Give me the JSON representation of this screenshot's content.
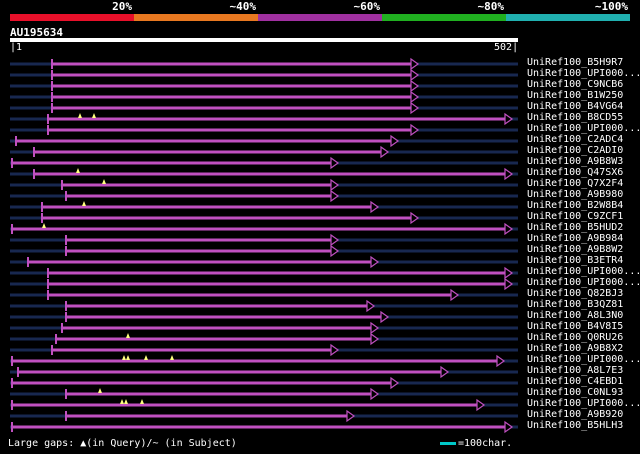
{
  "legend": {
    "labels": [
      "20%",
      "~40%",
      "~60%",
      "~80%",
      "~100%"
    ],
    "colors": [
      "#e8102a",
      "#e87820",
      "#a030a0",
      "#20b020",
      "#20b0b0"
    ]
  },
  "query": {
    "id": "AU195634",
    "start": "1",
    "end": "502"
  },
  "hit_color": "#c050c0",
  "faint_color": "#182850",
  "hits": [
    {
      "label": "UniRef100_B5H9R7",
      "start": 52,
      "end": 418,
      "faint_start": 10,
      "arrow": true,
      "gaps": []
    },
    {
      "label": "UniRef100_UPI000...",
      "start": 52,
      "end": 418,
      "faint_start": 10,
      "arrow": true,
      "gaps": []
    },
    {
      "label": "UniRef100_C9NCB6",
      "start": 52,
      "end": 418,
      "faint_start": 10,
      "arrow": true,
      "gaps": []
    },
    {
      "label": "UniRef100_B1W250",
      "start": 52,
      "end": 418,
      "faint_start": 10,
      "arrow": true,
      "gaps": []
    },
    {
      "label": "UniRef100_B4VG64",
      "start": 52,
      "end": 418,
      "faint_start": 10,
      "arrow": true,
      "gaps": []
    },
    {
      "label": "UniRef100_B8CD55",
      "start": 48,
      "end": 512,
      "faint_start": 10,
      "arrow": true,
      "gaps": [
        80,
        94
      ]
    },
    {
      "label": "UniRef100_UPI000...",
      "start": 48,
      "end": 418,
      "faint_start": 10,
      "arrow": true,
      "gaps": []
    },
    {
      "label": "UniRef100_C2ADC4",
      "start": 16,
      "end": 398,
      "faint_start": 10,
      "arrow": true,
      "gaps": []
    },
    {
      "label": "UniRef100_C2ADI0",
      "start": 34,
      "end": 388,
      "faint_start": 10,
      "arrow": true,
      "gaps": []
    },
    {
      "label": "UniRef100_A9B8W3",
      "start": 12,
      "end": 338,
      "faint_start": 10,
      "arrow": true,
      "gaps": []
    },
    {
      "label": "UniRef100_Q47SX6",
      "start": 34,
      "end": 512,
      "faint_start": 10,
      "arrow": true,
      "gaps": [
        78
      ]
    },
    {
      "label": "UniRef100_Q7X2F4",
      "start": 62,
      "end": 338,
      "faint_start": 10,
      "arrow": true,
      "gaps": [
        104
      ]
    },
    {
      "label": "UniRef100_A9B980",
      "start": 66,
      "end": 338,
      "faint_start": 10,
      "arrow": true,
      "gaps": []
    },
    {
      "label": "UniRef100_B2W8B4",
      "start": 42,
      "end": 378,
      "faint_start": 10,
      "arrow": true,
      "gaps": [
        84
      ]
    },
    {
      "label": "UniRef100_C9ZCF1",
      "start": 42,
      "end": 418,
      "faint_start": 10,
      "arrow": true,
      "gaps": []
    },
    {
      "label": "UniRef100_B5HUD2",
      "start": 12,
      "end": 512,
      "faint_start": 10,
      "arrow": true,
      "gaps": [
        44
      ]
    },
    {
      "label": "UniRef100_A9B984",
      "start": 66,
      "end": 338,
      "faint_start": 10,
      "arrow": true,
      "gaps": []
    },
    {
      "label": "UniRef100_A9B8W2",
      "start": 66,
      "end": 338,
      "faint_start": 10,
      "arrow": true,
      "gaps": []
    },
    {
      "label": "UniRef100_B3ETR4",
      "start": 28,
      "end": 378,
      "faint_start": 10,
      "arrow": true,
      "gaps": []
    },
    {
      "label": "UniRef100_UPI000...",
      "start": 48,
      "end": 512,
      "faint_start": 10,
      "arrow": true,
      "gaps": []
    },
    {
      "label": "UniRef100_UPI000...",
      "start": 48,
      "end": 512,
      "faint_start": 10,
      "arrow": true,
      "gaps": []
    },
    {
      "label": "UniRef100_Q82BJ3",
      "start": 48,
      "end": 458,
      "faint_start": 10,
      "arrow": true,
      "gaps": []
    },
    {
      "label": "UniRef100_B3QZ81",
      "start": 66,
      "end": 374,
      "faint_start": 10,
      "arrow": true,
      "gaps": []
    },
    {
      "label": "UniRef100_A8L3N0",
      "start": 66,
      "end": 388,
      "faint_start": 10,
      "arrow": true,
      "gaps": []
    },
    {
      "label": "UniRef100_B4V8I5",
      "start": 62,
      "end": 378,
      "faint_start": 10,
      "arrow": true,
      "gaps": []
    },
    {
      "label": "UniRef100_Q0RU26",
      "start": 56,
      "end": 378,
      "faint_start": 10,
      "arrow": true,
      "gaps": [
        128
      ]
    },
    {
      "label": "UniRef100_A9B8X2",
      "start": 52,
      "end": 338,
      "faint_start": 10,
      "arrow": true,
      "gaps": []
    },
    {
      "label": "UniRef100_UPI000...",
      "start": 12,
      "end": 504,
      "faint_start": 10,
      "arrow": true,
      "gaps": [
        124,
        128,
        146,
        172
      ]
    },
    {
      "label": "UniRef100_A8L7E3",
      "start": 18,
      "end": 448,
      "faint_start": 10,
      "arrow": true,
      "gaps": []
    },
    {
      "label": "UniRef100_C4EBD1",
      "start": 12,
      "end": 398,
      "faint_start": 10,
      "arrow": true,
      "gaps": []
    },
    {
      "label": "UniRef100_C0NL93",
      "start": 66,
      "end": 378,
      "faint_start": 10,
      "arrow": true,
      "gaps": [
        100
      ]
    },
    {
      "label": "UniRef100_UPI000...",
      "start": 12,
      "end": 484,
      "faint_start": 10,
      "arrow": true,
      "gaps": [
        122,
        126,
        142
      ]
    },
    {
      "label": "UniRef100_A9B920",
      "start": 66,
      "end": 354,
      "faint_start": 10,
      "arrow": true,
      "gaps": []
    },
    {
      "label": "UniRef100_B5HLH3",
      "start": 12,
      "end": 512,
      "faint_start": 10,
      "arrow": true,
      "gaps": []
    }
  ],
  "footer": {
    "text": "Large gaps: ▲(in Query)/~ (in Subject)"
  },
  "scale": {
    "text": "=100char."
  }
}
